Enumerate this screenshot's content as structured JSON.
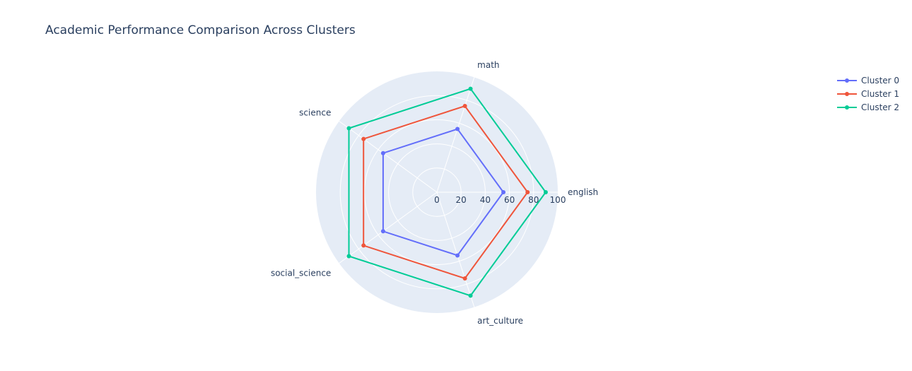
{
  "chart_data": {
    "type": "radar",
    "title": "Academic Performance Comparison Across Clusters",
    "axes": [
      "english",
      "math",
      "science",
      "social_science",
      "art_culture"
    ],
    "radial_range": [
      0,
      100
    ],
    "radial_ticks": [
      0,
      20,
      40,
      60,
      80,
      100
    ],
    "grid": true,
    "legend_position": "top-right",
    "series": [
      {
        "name": "Cluster 0",
        "color": "#636efa",
        "values": [
          55,
          55,
          55,
          55,
          55
        ]
      },
      {
        "name": "Cluster 1",
        "color": "#ef553b",
        "values": [
          75,
          75,
          75,
          75,
          75
        ]
      },
      {
        "name": "Cluster 2",
        "color": "#00cc96",
        "values": [
          90,
          90,
          90,
          90,
          90
        ]
      }
    ]
  }
}
